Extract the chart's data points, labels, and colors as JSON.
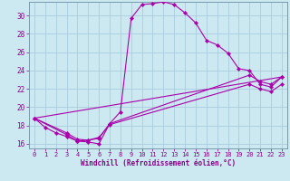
{
  "xlabel": "Windchill (Refroidissement éolien,°C)",
  "background_color": "#cce8f0",
  "grid_color": "#aaccdd",
  "line_color": "#aa00aa",
  "xlim": [
    -0.5,
    23.5
  ],
  "ylim": [
    15.5,
    31.5
  ],
  "xticks": [
    0,
    1,
    2,
    3,
    4,
    5,
    6,
    7,
    8,
    9,
    10,
    11,
    12,
    13,
    14,
    15,
    16,
    17,
    18,
    19,
    20,
    21,
    22,
    23
  ],
  "yticks": [
    16,
    18,
    20,
    22,
    24,
    26,
    28,
    30
  ],
  "curves": [
    {
      "x": [
        0,
        1,
        2,
        3,
        4,
        5,
        6,
        7,
        8,
        9,
        10,
        11,
        12,
        13,
        14,
        15,
        16,
        17,
        18,
        19,
        20,
        21,
        22,
        23
      ],
      "y": [
        18.8,
        17.8,
        17.2,
        16.8,
        16.3,
        16.2,
        16.0,
        18.2,
        19.5,
        29.7,
        31.2,
        31.3,
        31.5,
        31.2,
        30.3,
        29.2,
        27.3,
        26.8,
        25.9,
        24.2,
        24.0,
        22.5,
        22.2,
        23.3
      ],
      "markers": true
    },
    {
      "x": [
        0,
        3,
        4,
        5,
        6,
        7,
        20,
        21,
        22,
        23
      ],
      "y": [
        18.8,
        17.2,
        16.5,
        16.4,
        16.6,
        18.2,
        23.5,
        22.8,
        22.5,
        23.3
      ],
      "markers": true
    },
    {
      "x": [
        0,
        3,
        4,
        5,
        6,
        7,
        20,
        21,
        22,
        23
      ],
      "y": [
        18.8,
        17.0,
        16.3,
        16.4,
        16.7,
        18.1,
        22.5,
        22.0,
        21.7,
        22.5
      ],
      "markers": true
    },
    {
      "x": [
        0,
        23
      ],
      "y": [
        18.8,
        23.3
      ],
      "markers": false
    }
  ]
}
